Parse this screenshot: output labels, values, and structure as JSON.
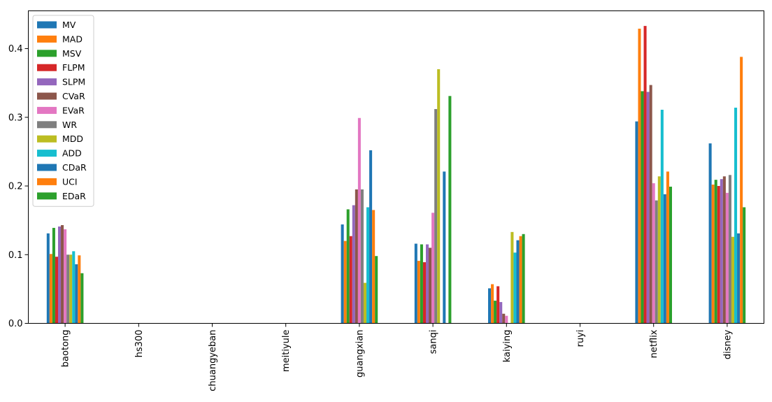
{
  "chart_data": {
    "type": "bar",
    "title": "",
    "xlabel": "",
    "ylabel": "",
    "ylim": [
      0,
      0.455
    ],
    "yticks": [
      0.0,
      0.1,
      0.2,
      0.3,
      0.4
    ],
    "ytick_labels": [
      "0.0",
      "0.1",
      "0.2",
      "0.3",
      "0.4"
    ],
    "grid": false,
    "legend_position": "top-left",
    "categories": [
      "baotong",
      "hs300",
      "chuangyeban",
      "meitiyule",
      "guangxian",
      "sanqi",
      "kaiying",
      "ruyi",
      "netflix",
      "disney"
    ],
    "series": [
      {
        "name": "MV",
        "color": "#1f77b4",
        "values": [
          0.131,
          0,
          0,
          0,
          0.144,
          0.116,
          0.051,
          0,
          0.294,
          0.262
        ]
      },
      {
        "name": "MAD",
        "color": "#ff7f0e",
        "values": [
          0.101,
          0,
          0,
          0,
          0.12,
          0.091,
          0.057,
          0,
          0.429,
          0.202
        ]
      },
      {
        "name": "MSV",
        "color": "#2ca02c",
        "values": [
          0.139,
          0,
          0,
          0,
          0.166,
          0.115,
          0.033,
          0,
          0.338,
          0.209
        ]
      },
      {
        "name": "FLPM",
        "color": "#d62728",
        "values": [
          0.097,
          0,
          0,
          0,
          0.127,
          0.089,
          0.054,
          0,
          0.433,
          0.2
        ]
      },
      {
        "name": "SLPM",
        "color": "#9467bd",
        "values": [
          0.141,
          0,
          0,
          0,
          0.172,
          0.115,
          0.031,
          0,
          0.337,
          0.21
        ]
      },
      {
        "name": "CVaR",
        "color": "#8c564b",
        "values": [
          0.143,
          0,
          0,
          0,
          0.195,
          0.11,
          0.014,
          0,
          0.347,
          0.214
        ]
      },
      {
        "name": "EVaR",
        "color": "#e377c2",
        "values": [
          0.137,
          0,
          0,
          0,
          0.299,
          0.161,
          0.011,
          0,
          0.204,
          0.19
        ]
      },
      {
        "name": "WR",
        "color": "#7f7f7f",
        "values": [
          0.1,
          0,
          0,
          0,
          0.195,
          0.312,
          0,
          0,
          0.179,
          0.216
        ]
      },
      {
        "name": "MDD",
        "color": "#bcbd22",
        "values": [
          0.1,
          0,
          0,
          0,
          0.059,
          0.37,
          0.133,
          0,
          0.214,
          0.126
        ]
      },
      {
        "name": "ADD",
        "color": "#17becf",
        "values": [
          0.105,
          0,
          0,
          0,
          0.169,
          0,
          0.103,
          0,
          0.311,
          0.314
        ]
      },
      {
        "name": "CDaR",
        "color": "#1f77b4",
        "values": [
          0.086,
          0,
          0,
          0,
          0.252,
          0.221,
          0.121,
          0,
          0.188,
          0.131
        ]
      },
      {
        "name": "UCI",
        "color": "#ff7f0e",
        "values": [
          0.099,
          0,
          0,
          0,
          0.165,
          0,
          0.127,
          0,
          0.221,
          0.388
        ]
      },
      {
        "name": "EDaR",
        "color": "#2ca02c",
        "values": [
          0.073,
          0,
          0,
          0,
          0.098,
          0.331,
          0.13,
          0,
          0.199,
          0.169
        ]
      }
    ]
  }
}
